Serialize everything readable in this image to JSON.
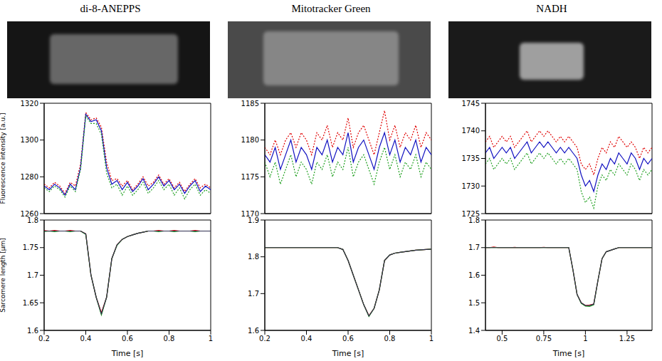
{
  "chart_data": [
    {
      "type": "line",
      "title": "di-8-ANEPPS",
      "ylabel": "Fluorescence intensity [a.u.]",
      "tick_labels": "y",
      "xlim": [
        0.2,
        1
      ],
      "xticks": [
        0.2,
        0.4,
        0.6,
        0.8,
        1
      ],
      "ylim": [
        1260,
        1320
      ],
      "yticks": [
        1260,
        1280,
        1300,
        1320
      ],
      "x": [
        0.2,
        0.225,
        0.25,
        0.275,
        0.3,
        0.325,
        0.35,
        0.375,
        0.4,
        0.425,
        0.45,
        0.475,
        0.5,
        0.525,
        0.55,
        0.575,
        0.6,
        0.625,
        0.65,
        0.675,
        0.7,
        0.725,
        0.75,
        0.775,
        0.8,
        0.825,
        0.85,
        0.875,
        0.9,
        0.925,
        0.95,
        0.975,
        1.0
      ],
      "series": [
        {
          "color": "#e00000",
          "line_style": "dotted",
          "values": [
            1276,
            1274,
            1277,
            1275,
            1271,
            1277,
            1275,
            1287,
            1315,
            1311,
            1312,
            1307,
            1288,
            1278,
            1279,
            1275,
            1278,
            1273,
            1276,
            1280,
            1275,
            1277,
            1281,
            1276,
            1279,
            1274,
            1277,
            1272,
            1276,
            1279,
            1274,
            1276,
            1274
          ]
        },
        {
          "color": "#1010c0",
          "line_style": "solid",
          "values": [
            1275,
            1273,
            1276,
            1274,
            1270,
            1276,
            1273,
            1285,
            1314,
            1310,
            1311,
            1305,
            1285,
            1276,
            1278,
            1273,
            1277,
            1272,
            1275,
            1279,
            1273,
            1276,
            1280,
            1275,
            1278,
            1273,
            1276,
            1271,
            1275,
            1278,
            1272,
            1275,
            1273
          ]
        },
        {
          "color": "#20a020",
          "line_style": "dotted",
          "values": [
            1274,
            1272,
            1275,
            1273,
            1269,
            1275,
            1272,
            1284,
            1313,
            1309,
            1309,
            1303,
            1282,
            1274,
            1276,
            1270,
            1275,
            1270,
            1273,
            1277,
            1271,
            1274,
            1278,
            1273,
            1276,
            1270,
            1274,
            1268,
            1273,
            1276,
            1270,
            1273,
            1271
          ]
        }
      ]
    },
    {
      "type": "line",
      "ylabel": "Sarcomere length [μm]",
      "xlabel": "Time [s]",
      "xlim": [
        0.2,
        1
      ],
      "xticks": [
        0.2,
        0.4,
        0.6,
        0.8,
        1
      ],
      "ylim": [
        1.6,
        1.8
      ],
      "yticks": [
        1.6,
        1.65,
        1.7,
        1.75,
        1.8
      ],
      "x": [
        0.2,
        0.225,
        0.25,
        0.275,
        0.3,
        0.325,
        0.35,
        0.375,
        0.4,
        0.425,
        0.45,
        0.475,
        0.5,
        0.525,
        0.55,
        0.575,
        0.6,
        0.625,
        0.65,
        0.675,
        0.7,
        0.725,
        0.75,
        0.775,
        0.8,
        0.825,
        0.85,
        0.875,
        0.9,
        0.925,
        0.95,
        0.975,
        1.0
      ],
      "series": [
        {
          "color": "#e00000",
          "line_style": "solid",
          "values": [
            1.781,
            1.78,
            1.781,
            1.78,
            1.78,
            1.781,
            1.78,
            1.78,
            1.775,
            1.7,
            1.66,
            1.632,
            1.66,
            1.73,
            1.755,
            1.765,
            1.77,
            1.773,
            1.776,
            1.778,
            1.78,
            1.78,
            1.781,
            1.78,
            1.78,
            1.781,
            1.78,
            1.78,
            1.78,
            1.781,
            1.78,
            1.78,
            1.78
          ]
        },
        {
          "color": "#20a020",
          "line_style": "solid",
          "values": [
            1.779,
            1.78,
            1.779,
            1.78,
            1.78,
            1.779,
            1.78,
            1.78,
            1.774,
            1.7,
            1.66,
            1.628,
            1.66,
            1.73,
            1.754,
            1.765,
            1.77,
            1.773,
            1.776,
            1.778,
            1.78,
            1.78,
            1.779,
            1.78,
            1.78,
            1.779,
            1.78,
            1.78,
            1.78,
            1.779,
            1.78,
            1.78,
            1.78
          ]
        },
        {
          "color": "#303050",
          "line_style": "solid",
          "values": [
            1.78,
            1.78,
            1.78,
            1.78,
            1.78,
            1.78,
            1.78,
            1.78,
            1.775,
            1.7,
            1.66,
            1.63,
            1.66,
            1.73,
            1.755,
            1.765,
            1.77,
            1.773,
            1.776,
            1.778,
            1.78,
            1.78,
            1.78,
            1.78,
            1.78,
            1.78,
            1.78,
            1.78,
            1.78,
            1.78,
            1.78,
            1.78,
            1.78
          ]
        }
      ]
    },
    {
      "type": "line",
      "title": "Mitotracker Green",
      "tick_labels": "y",
      "xlim": [
        0.2,
        1
      ],
      "xticks": [
        0.2,
        0.4,
        0.6,
        0.8,
        1
      ],
      "ylim": [
        1170,
        1185
      ],
      "yticks": [
        1170,
        1175,
        1180,
        1185
      ],
      "x": [
        0.2,
        0.225,
        0.25,
        0.275,
        0.3,
        0.325,
        0.35,
        0.375,
        0.4,
        0.425,
        0.45,
        0.475,
        0.5,
        0.525,
        0.55,
        0.575,
        0.6,
        0.625,
        0.65,
        0.675,
        0.7,
        0.725,
        0.75,
        0.775,
        0.8,
        0.825,
        0.85,
        0.875,
        0.9,
        0.925,
        0.95,
        0.975,
        1.0
      ],
      "series": [
        {
          "color": "#e00000",
          "line_style": "dotted",
          "values": [
            1179,
            1178,
            1180,
            1178,
            1180,
            1181,
            1179,
            1181,
            1180,
            1178,
            1181,
            1180,
            1182,
            1179,
            1181,
            1180,
            1183,
            1179,
            1181,
            1182,
            1180,
            1178,
            1181,
            1184,
            1180,
            1182,
            1179,
            1181,
            1180,
            1182,
            1179,
            1181,
            1180
          ]
        },
        {
          "color": "#1010c0",
          "line_style": "solid",
          "values": [
            1178,
            1177,
            1179,
            1176,
            1178,
            1180,
            1177,
            1179,
            1178,
            1176,
            1179,
            1178,
            1180,
            1177,
            1179,
            1178,
            1181,
            1177,
            1179,
            1180,
            1178,
            1176,
            1179,
            1181,
            1178,
            1180,
            1177,
            1179,
            1178,
            1180,
            1177,
            1179,
            1178
          ]
        },
        {
          "color": "#20a020",
          "line_style": "dotted",
          "values": [
            1177,
            1175,
            1177,
            1174,
            1176,
            1178,
            1175,
            1177,
            1176,
            1174,
            1177,
            1176,
            1178,
            1175,
            1177,
            1176,
            1179,
            1175,
            1177,
            1178,
            1176,
            1174,
            1177,
            1179,
            1176,
            1178,
            1175,
            1177,
            1176,
            1178,
            1175,
            1177,
            1176
          ]
        }
      ]
    },
    {
      "type": "line",
      "xlabel": "Time [s]",
      "xlim": [
        0.2,
        1
      ],
      "xticks": [
        0.2,
        0.4,
        0.6,
        0.8,
        1
      ],
      "ylim": [
        1.6,
        1.9
      ],
      "yticks": [
        1.6,
        1.7,
        1.8,
        1.9
      ],
      "x": [
        0.2,
        0.225,
        0.25,
        0.275,
        0.3,
        0.325,
        0.35,
        0.375,
        0.4,
        0.425,
        0.45,
        0.475,
        0.5,
        0.525,
        0.55,
        0.575,
        0.6,
        0.625,
        0.65,
        0.675,
        0.7,
        0.725,
        0.75,
        0.775,
        0.8,
        0.825,
        0.85,
        0.875,
        0.9,
        0.925,
        0.95,
        0.975,
        1.0
      ],
      "series": [
        {
          "color": "#e00000",
          "line_style": "solid",
          "values": [
            1.825,
            1.825,
            1.825,
            1.825,
            1.825,
            1.825,
            1.825,
            1.825,
            1.825,
            1.825,
            1.825,
            1.825,
            1.825,
            1.825,
            1.825,
            1.82,
            1.79,
            1.75,
            1.71,
            1.67,
            1.64,
            1.66,
            1.71,
            1.79,
            1.805,
            1.81,
            1.812,
            1.814,
            1.816,
            1.818,
            1.819,
            1.82,
            1.821
          ]
        },
        {
          "color": "#20a020",
          "line_style": "solid",
          "values": [
            1.825,
            1.825,
            1.825,
            1.825,
            1.825,
            1.825,
            1.825,
            1.825,
            1.825,
            1.825,
            1.825,
            1.825,
            1.825,
            1.825,
            1.825,
            1.82,
            1.79,
            1.75,
            1.71,
            1.67,
            1.638,
            1.66,
            1.71,
            1.79,
            1.805,
            1.81,
            1.812,
            1.814,
            1.816,
            1.818,
            1.819,
            1.82,
            1.821
          ]
        },
        {
          "color": "#303050",
          "line_style": "solid",
          "values": [
            1.825,
            1.825,
            1.825,
            1.825,
            1.825,
            1.825,
            1.825,
            1.825,
            1.825,
            1.825,
            1.825,
            1.825,
            1.825,
            1.825,
            1.825,
            1.82,
            1.79,
            1.75,
            1.71,
            1.67,
            1.639,
            1.66,
            1.71,
            1.79,
            1.805,
            1.81,
            1.812,
            1.814,
            1.816,
            1.818,
            1.819,
            1.82,
            1.821
          ]
        }
      ]
    },
    {
      "type": "line",
      "title": "NADH",
      "tick_labels": "y",
      "xlim": [
        0.4,
        1.4
      ],
      "xticks": [
        0.5,
        0.75,
        1,
        1.25
      ],
      "ylim": [
        1725,
        1745
      ],
      "yticks": [
        1725,
        1730,
        1735,
        1740,
        1745
      ],
      "x": [
        0.4,
        0.425,
        0.45,
        0.475,
        0.5,
        0.525,
        0.55,
        0.575,
        0.6,
        0.625,
        0.65,
        0.675,
        0.7,
        0.725,
        0.75,
        0.775,
        0.8,
        0.825,
        0.85,
        0.875,
        0.9,
        0.925,
        0.95,
        0.975,
        1.0,
        1.025,
        1.05,
        1.075,
        1.1,
        1.125,
        1.15,
        1.175,
        1.2,
        1.225,
        1.25,
        1.275,
        1.3,
        1.325,
        1.35,
        1.375,
        1.4
      ],
      "series": [
        {
          "color": "#e00000",
          "line_style": "dotted",
          "values": [
            1738,
            1739,
            1737,
            1738,
            1739,
            1738,
            1739,
            1737,
            1738,
            1739,
            1740,
            1738,
            1739,
            1740,
            1739,
            1740,
            1739,
            1738,
            1739,
            1738,
            1739,
            1738,
            1737,
            1734,
            1733,
            1734,
            1732,
            1735,
            1737,
            1736,
            1738,
            1737,
            1739,
            1738,
            1737,
            1738,
            1737,
            1735,
            1737,
            1736,
            1737
          ]
        },
        {
          "color": "#1010c0",
          "line_style": "solid",
          "values": [
            1736,
            1737,
            1735,
            1736,
            1737,
            1736,
            1737,
            1735,
            1736,
            1737,
            1738,
            1736,
            1737,
            1738,
            1737,
            1738,
            1737,
            1736,
            1737,
            1736,
            1737,
            1736,
            1735,
            1732,
            1730,
            1731,
            1729,
            1732,
            1734,
            1733,
            1735,
            1734,
            1736,
            1735,
            1734,
            1736,
            1735,
            1733,
            1735,
            1734,
            1735
          ]
        },
        {
          "color": "#20a020",
          "line_style": "dotted",
          "values": [
            1734,
            1735,
            1733,
            1734,
            1735,
            1734,
            1735,
            1733,
            1734,
            1735,
            1736,
            1734,
            1735,
            1736,
            1735,
            1736,
            1735,
            1734,
            1735,
            1734,
            1735,
            1734,
            1733,
            1729,
            1727,
            1728,
            1726,
            1730,
            1732,
            1731,
            1733,
            1732,
            1734,
            1733,
            1732,
            1734,
            1733,
            1731,
            1733,
            1732,
            1733
          ]
        }
      ]
    },
    {
      "type": "line",
      "xlabel": "Time [s]",
      "xlim": [
        0.4,
        1.4
      ],
      "xticks": [
        0.5,
        0.75,
        1,
        1.25
      ],
      "ylim": [
        1.4,
        1.8
      ],
      "yticks": [
        1.4,
        1.5,
        1.6,
        1.7,
        1.8
      ],
      "x": [
        0.4,
        0.425,
        0.45,
        0.475,
        0.5,
        0.525,
        0.55,
        0.575,
        0.6,
        0.625,
        0.65,
        0.675,
        0.7,
        0.725,
        0.75,
        0.775,
        0.8,
        0.825,
        0.85,
        0.875,
        0.9,
        0.925,
        0.95,
        0.975,
        1.0,
        1.025,
        1.05,
        1.075,
        1.1,
        1.125,
        1.15,
        1.175,
        1.2,
        1.225,
        1.25,
        1.275,
        1.3,
        1.325,
        1.35,
        1.375,
        1.4
      ],
      "series": [
        {
          "color": "#e00000",
          "line_style": "solid",
          "values": [
            1.7,
            1.7,
            1.702,
            1.7,
            1.7,
            1.7,
            1.7,
            1.701,
            1.7,
            1.7,
            1.7,
            1.7,
            1.7,
            1.7,
            1.701,
            1.7,
            1.7,
            1.7,
            1.7,
            1.7,
            1.7,
            1.62,
            1.53,
            1.5,
            1.49,
            1.492,
            1.495,
            1.58,
            1.66,
            1.685,
            1.69,
            1.695,
            1.7,
            1.7,
            1.7,
            1.7,
            1.7,
            1.7,
            1.7,
            1.7,
            1.7
          ]
        },
        {
          "color": "#20a020",
          "line_style": "solid",
          "values": [
            1.7,
            1.7,
            1.7,
            1.7,
            1.7,
            1.7,
            1.7,
            1.7,
            1.7,
            1.7,
            1.7,
            1.7,
            1.7,
            1.7,
            1.7,
            1.7,
            1.7,
            1.7,
            1.7,
            1.7,
            1.7,
            1.62,
            1.53,
            1.498,
            1.488,
            1.487,
            1.493,
            1.58,
            1.66,
            1.685,
            1.69,
            1.695,
            1.7,
            1.7,
            1.7,
            1.7,
            1.7,
            1.7,
            1.7,
            1.7,
            1.7
          ]
        },
        {
          "color": "#303050",
          "line_style": "solid",
          "values": [
            1.7,
            1.7,
            1.7,
            1.7,
            1.7,
            1.7,
            1.7,
            1.7,
            1.7,
            1.7,
            1.7,
            1.7,
            1.7,
            1.7,
            1.7,
            1.7,
            1.7,
            1.7,
            1.7,
            1.7,
            1.7,
            1.62,
            1.53,
            1.5,
            1.49,
            1.49,
            1.495,
            1.58,
            1.66,
            1.685,
            1.69,
            1.695,
            1.7,
            1.7,
            1.7,
            1.7,
            1.7,
            1.7,
            1.7,
            1.7,
            1.7
          ]
        }
      ]
    }
  ]
}
